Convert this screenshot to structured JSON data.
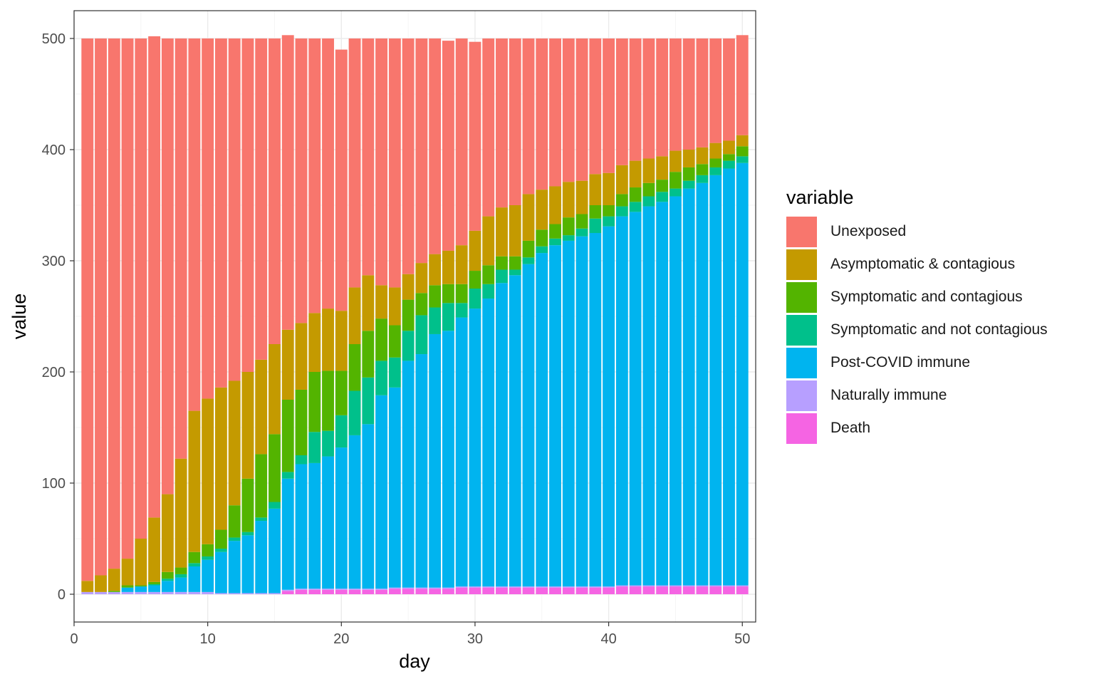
{
  "chart_data": {
    "type": "bar",
    "stacked": true,
    "xlabel": "day",
    "ylabel": "value",
    "xlim": [
      0,
      51
    ],
    "ylim": [
      -25,
      525
    ],
    "xticks": [
      0,
      10,
      20,
      30,
      40,
      50
    ],
    "yticks": [
      0,
      100,
      200,
      300,
      400,
      500
    ],
    "grid": true,
    "legend": {
      "title": "variable",
      "position": "right"
    },
    "x": [
      1,
      2,
      3,
      4,
      5,
      6,
      7,
      8,
      9,
      10,
      11,
      12,
      13,
      14,
      15,
      16,
      17,
      18,
      19,
      20,
      21,
      22,
      23,
      24,
      25,
      26,
      27,
      28,
      29,
      30,
      31,
      32,
      33,
      34,
      35,
      36,
      37,
      38,
      39,
      40,
      41,
      42,
      43,
      44,
      45,
      46,
      47,
      48,
      49,
      50
    ],
    "series": [
      {
        "name": "Death",
        "color": "#F564E3",
        "values": [
          0,
          0,
          0,
          0,
          0,
          0,
          0,
          0,
          0,
          0,
          0,
          0,
          0,
          0,
          0,
          3,
          4,
          4,
          4,
          4,
          4,
          4,
          4,
          5,
          5,
          5,
          5,
          5,
          6,
          6,
          6,
          6,
          6,
          6,
          6,
          6,
          6,
          6,
          6,
          6,
          7,
          7,
          7,
          7,
          7,
          7,
          7,
          7,
          7,
          7
        ]
      },
      {
        "name": "Naturally immune",
        "color": "#B79FFF",
        "values": [
          2,
          2,
          2,
          2,
          2,
          2,
          2,
          2,
          2,
          2,
          1,
          1,
          1,
          1,
          1,
          1,
          1,
          1,
          1,
          1,
          1,
          1,
          1,
          1,
          1,
          1,
          1,
          1,
          1,
          1,
          1,
          1,
          1,
          1,
          1,
          1,
          1,
          1,
          1,
          1,
          1,
          1,
          1,
          1,
          1,
          1,
          1,
          1,
          1,
          1
        ]
      },
      {
        "name": "Post-COVID immune",
        "color": "#00B4EF",
        "values": [
          0,
          0,
          0,
          4,
          5,
          6,
          10,
          13,
          23,
          29,
          37,
          47,
          52,
          65,
          76,
          100,
          112,
          113,
          119,
          127,
          138,
          148,
          174,
          180,
          204,
          210,
          228,
          231,
          242,
          250,
          259,
          273,
          280,
          290,
          300,
          307,
          311,
          315,
          318,
          324,
          332,
          336,
          341,
          345,
          350,
          357,
          362,
          369,
          375,
          380
        ]
      },
      {
        "name": "Symptomatic and not contagious",
        "color": "#00C08B",
        "values": [
          0,
          0,
          0,
          0,
          0,
          1,
          2,
          3,
          3,
          3,
          3,
          3,
          3,
          3,
          6,
          6,
          8,
          28,
          23,
          29,
          40,
          42,
          31,
          27,
          27,
          35,
          24,
          25,
          13,
          18,
          13,
          12,
          5,
          6,
          6,
          6,
          5,
          7,
          13,
          9,
          9,
          9,
          9,
          9,
          7,
          7,
          7,
          7,
          7,
          6
        ]
      },
      {
        "name": "Symptomatic and contagious",
        "color": "#53B400",
        "values": [
          0,
          0,
          1,
          2,
          1,
          2,
          6,
          6,
          10,
          11,
          17,
          29,
          48,
          57,
          61,
          65,
          59,
          54,
          54,
          40,
          42,
          42,
          38,
          29,
          28,
          20,
          20,
          17,
          17,
          16,
          17,
          12,
          12,
          15,
          15,
          13,
          16,
          13,
          12,
          10,
          11,
          13,
          12,
          11,
          15,
          12,
          10,
          8,
          6,
          9
        ]
      },
      {
        "name": "Asymptomatic & contagious",
        "color": "#C49A00",
        "values": [
          10,
          15,
          20,
          24,
          42,
          58,
          70,
          98,
          127,
          131,
          128,
          112,
          96,
          85,
          81,
          63,
          60,
          53,
          56,
          54,
          51,
          50,
          30,
          34,
          23,
          27,
          28,
          30,
          35,
          36,
          44,
          44,
          46,
          42,
          36,
          34,
          32,
          30,
          28,
          29,
          26,
          24,
          22,
          21,
          19,
          16,
          15,
          14,
          12,
          10
        ]
      },
      {
        "name": "Unexposed",
        "color": "#F8766D",
        "values": [
          488,
          483,
          477,
          468,
          450,
          433,
          410,
          378,
          335,
          324,
          314,
          308,
          300,
          289,
          275,
          265,
          256,
          247,
          243,
          235,
          224,
          213,
          222,
          224,
          212,
          202,
          194,
          189,
          186,
          170,
          160,
          152,
          150,
          140,
          136,
          133,
          129,
          128,
          122,
          121,
          114,
          110,
          108,
          106,
          101,
          100,
          98,
          94,
          92,
          90
        ]
      }
    ]
  },
  "legend_order": [
    "Unexposed",
    "Asymptomatic & contagious",
    "Symptomatic and contagious",
    "Symptomatic and not contagious",
    "Post-COVID immune",
    "Naturally immune",
    "Death"
  ]
}
